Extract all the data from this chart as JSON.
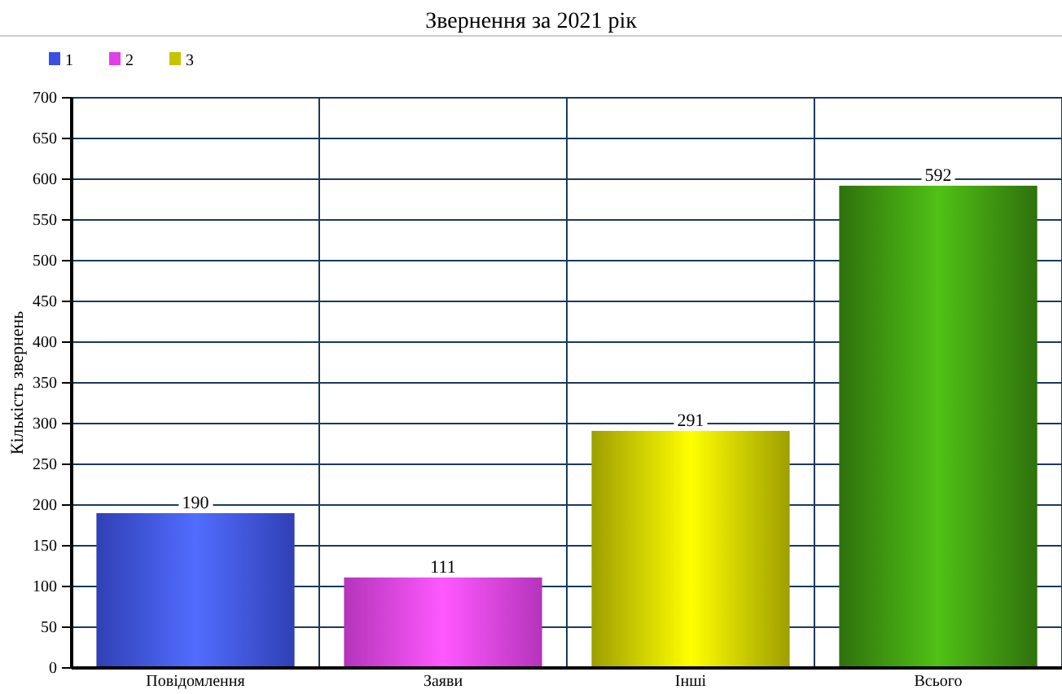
{
  "chart_data": {
    "type": "bar",
    "title": "Звернення за 2021 рік",
    "ylabel": "Кількість звернень",
    "categories": [
      "Повідомлення",
      "Заяви",
      "Інші",
      "Всього"
    ],
    "series": [
      {
        "name": "1",
        "color": "#3b4fe0",
        "values": [
          190,
          null,
          null,
          null
        ]
      },
      {
        "name": "2",
        "color": "#e040e8",
        "values": [
          null,
          111,
          null,
          null
        ]
      },
      {
        "name": "3",
        "color": "#c4c400",
        "values": [
          null,
          null,
          291,
          null
        ]
      },
      {
        "color": "#3a8c10",
        "values": [
          null,
          null,
          null,
          592
        ]
      }
    ],
    "stacked": true,
    "ylim": [
      0,
      700
    ],
    "yticks": [
      0,
      50,
      100,
      150,
      200,
      250,
      300,
      350,
      400,
      450,
      500,
      550,
      600,
      650,
      700
    ],
    "grid": true,
    "legend": "top left",
    "data_labels": true
  }
}
